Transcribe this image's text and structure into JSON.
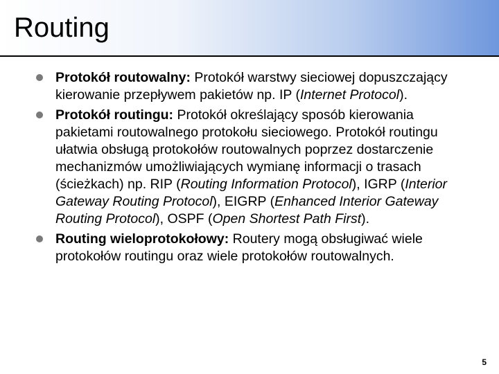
{
  "slide": {
    "title": "Routing",
    "title_bar": {
      "gradient_from": "#ffffff",
      "gradient_mid1": "#f0f4fb",
      "gradient_mid2": "#b9cdee",
      "gradient_to": "#6f97dd",
      "border_color": "#000000",
      "title_fontsize": 40
    },
    "bullet_color": "#7a7a7a",
    "body_fontsize": 19.5,
    "bullets": [
      {
        "term": "Protokół routowalny:",
        "text_before_italic": " Protokół warstwy sieciowej dopuszczający kierowanie przepływem pakietów np. IP (",
        "italic": "Internet Protocol",
        "text_after_italic": ")."
      },
      {
        "term": "Protokół routingu:",
        "text_before_italic": " Protokół określający sposób kierowania pakietami routowalnego protokołu sieciowego. Protokół routingu ułatwia obsługą protokołów routowalnych poprzez dostarczenie mechanizmów umożliwiających wymianę informacji o trasach (ścieżkach) np. RIP (",
        "italic": "Routing Information Protocol",
        "mid1": "), IGRP (",
        "italic2": "Interior Gateway Routing Protocol",
        "mid2": "), EIGRP (",
        "italic3": "Enhanced Interior Gateway Routing Protocol",
        "mid3": "), OSPF (",
        "italic4": "Open Shortest Path First",
        "text_after": ")."
      },
      {
        "term": "Routing wieloprotokołowy:",
        "text_before_italic": " Routery mogą obsługiwać wiele protokołów routingu oraz wiele protokołów routowalnych.",
        "italic": "",
        "text_after_italic": ""
      }
    ],
    "page_number": "5"
  }
}
